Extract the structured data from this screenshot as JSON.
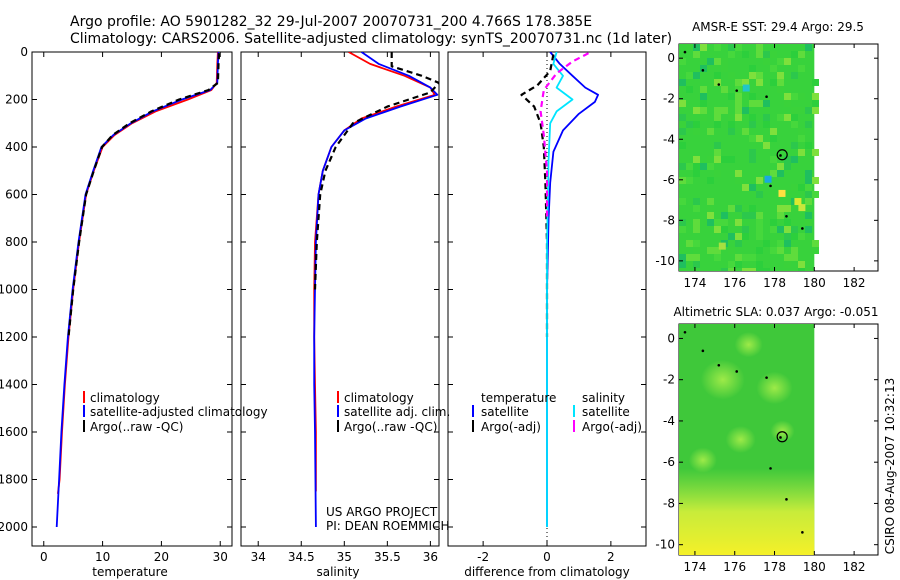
{
  "header": {
    "title_line1": "Argo profile: AO 5901282_32 29-Jul-2007 20070731_200 4.766S 178.385E",
    "title_line2": "Climatology: CARS2006. Satellite-adjusted climatology: synTS_20070731.nc (1d later)"
  },
  "footer": {
    "project_line1": "US ARGO PROJECT",
    "project_line2": "PI: DEAN ROEMMICH",
    "stamp": "CSIRO 08-Aug-2007 10:32:13"
  },
  "colors": {
    "climatology": "#ff0000",
    "satellite": "#0000ff",
    "argo": "#000000",
    "sal_satellite": "#00e5ff",
    "sal_argo": "#ff00ff"
  },
  "chart_data": [
    {
      "id": "temperature",
      "type": "line",
      "xlabel": "temperature",
      "ylabel": "",
      "xlim": [
        -2,
        32
      ],
      "ylim": [
        2080,
        0
      ],
      "xticks": [
        0,
        10,
        20,
        30
      ],
      "xtick_labels": [
        "0",
        "10",
        "20",
        "30"
      ],
      "yticks": [
        0,
        200,
        400,
        600,
        800,
        1000,
        1200,
        1400,
        1600,
        1800,
        2000
      ],
      "ytick_labels": [
        "0",
        "200",
        "400",
        "600",
        "800",
        "1000",
        "1200",
        "1400",
        "1600",
        "1800",
        "2000"
      ],
      "legend": [
        "climatology",
        "satellite-adjusted climatology",
        "Argo(..raw -QC)"
      ],
      "legend_placement": "lower-right",
      "series": [
        {
          "name": "climatology",
          "style": "solid",
          "color": "#ff0000",
          "x": [
            29.6,
            29.5,
            29.4,
            28.5,
            24.5,
            19.0,
            15.0,
            12.0,
            10.0,
            8.5,
            7.2,
            6.0,
            5.0,
            4.2,
            3.6,
            3.1,
            2.7,
            2.4
          ],
          "y": [
            0,
            50,
            130,
            160,
            200,
            250,
            300,
            350,
            400,
            500,
            600,
            800,
            1000,
            1200,
            1400,
            1600,
            1800,
            1860
          ]
        },
        {
          "name": "satellite-adjusted climatology",
          "style": "solid",
          "color": "#0000ff",
          "x": [
            29.7,
            29.6,
            29.5,
            28.3,
            23.5,
            18.5,
            14.8,
            11.8,
            9.8,
            8.4,
            7.1,
            5.9,
            4.9,
            4.1,
            3.5,
            3.0,
            2.6,
            2.3,
            2.2
          ],
          "y": [
            0,
            50,
            130,
            160,
            200,
            250,
            300,
            350,
            400,
            500,
            600,
            800,
            1000,
            1200,
            1400,
            1600,
            1800,
            1950,
            2000
          ]
        },
        {
          "name": "Argo(..raw -QC)",
          "style": "dashed",
          "color": "#000000",
          "x": [
            29.8,
            29.7,
            29.6,
            28.0,
            23.0,
            18.3,
            14.6,
            11.7,
            9.9,
            8.5,
            7.2,
            6.0,
            5.0,
            4.2
          ],
          "y": [
            5,
            50,
            130,
            160,
            200,
            250,
            300,
            350,
            400,
            500,
            600,
            800,
            1000,
            1200
          ]
        }
      ]
    },
    {
      "id": "salinity",
      "type": "line",
      "xlabel": "salinity",
      "ylabel": "",
      "xlim": [
        33.8,
        36.1
      ],
      "ylim": [
        2080,
        0
      ],
      "xticks": [
        34,
        34.5,
        35,
        35.5,
        36
      ],
      "xtick_labels": [
        "34",
        "34.5",
        "35",
        "35.5",
        "36"
      ],
      "legend": [
        "climatology",
        "satellite adj. clim.",
        "Argo(..raw -QC)"
      ],
      "legend_placement": "lower-right",
      "series": [
        {
          "name": "climatology",
          "style": "solid",
          "color": "#ff0000",
          "x": [
            35.05,
            35.3,
            35.7,
            36.0,
            36.05,
            35.6,
            35.2,
            35.0,
            34.85,
            34.75,
            34.7,
            34.66,
            34.65,
            34.65,
            34.66,
            34.67,
            34.67
          ],
          "y": [
            0,
            50,
            100,
            150,
            180,
            230,
            280,
            330,
            400,
            500,
            600,
            800,
            1000,
            1200,
            1400,
            1600,
            1850
          ]
        },
        {
          "name": "satellite adj. clim.",
          "style": "solid",
          "color": "#0000ff",
          "x": [
            35.2,
            35.4,
            35.75,
            36.0,
            36.08,
            35.65,
            35.25,
            35.0,
            34.85,
            34.75,
            34.7,
            34.67,
            34.66,
            34.65,
            34.65,
            34.66,
            34.67
          ],
          "y": [
            0,
            50,
            100,
            150,
            180,
            230,
            280,
            330,
            400,
            500,
            600,
            800,
            1000,
            1200,
            1400,
            1600,
            2000
          ]
        },
        {
          "name": "Argo(..raw -QC)",
          "style": "dashed",
          "color": "#000000",
          "x": [
            35.55,
            35.55,
            35.9,
            36.1,
            36.0,
            35.5,
            35.1,
            34.9,
            34.78,
            34.72,
            34.68,
            34.66
          ],
          "y": [
            0,
            60,
            100,
            130,
            170,
            230,
            300,
            400,
            500,
            600,
            800,
            1000
          ]
        }
      ]
    },
    {
      "id": "difference",
      "type": "line",
      "xlabel": "difference from climatology",
      "ylabel": "",
      "xlim": [
        -3.1,
        3.1
      ],
      "ylim": [
        2080,
        0
      ],
      "xticks": [
        -2,
        0,
        2
      ],
      "xtick_labels": [
        "-2",
        "0",
        "2"
      ],
      "legend_groups": [
        {
          "heading": "temperature",
          "items": [
            "satellite",
            "Argo(-adj)"
          ]
        },
        {
          "heading": "salinity",
          "items": [
            "satellite",
            "Argo(-adj)"
          ]
        }
      ],
      "legend_placement": "lower-center",
      "series": [
        {
          "name": "temperature satellite",
          "style": "solid",
          "color": "#0000ff",
          "x": [
            0.1,
            0.4,
            0.8,
            1.2,
            1.6,
            1.5,
            1.0,
            0.5,
            0.2,
            0.1,
            0.05,
            0.0,
            0.0
          ],
          "y": [
            0,
            50,
            100,
            150,
            180,
            210,
            260,
            330,
            420,
            550,
            700,
            1000,
            2000
          ]
        },
        {
          "name": "temperature Argo(-adj)",
          "style": "dashed",
          "color": "#000000",
          "x": [
            0.2,
            0.1,
            -0.3,
            -0.8,
            -0.4,
            -0.2,
            -0.1,
            -0.05,
            0.0,
            0.0
          ],
          "y": [
            10,
            80,
            140,
            180,
            230,
            300,
            400,
            550,
            800,
            1200
          ]
        },
        {
          "name": "salinity satellite",
          "style": "solid",
          "color": "#00e5ff",
          "x": [
            0.3,
            0.2,
            0.5,
            0.3,
            0.8,
            0.3,
            0.1,
            0.05,
            0.0,
            0.0
          ],
          "y": [
            0,
            50,
            100,
            150,
            200,
            250,
            300,
            450,
            800,
            2000
          ]
        },
        {
          "name": "salinity Argo(-adj)",
          "style": "dashed",
          "color": "#ff00ff",
          "x": [
            1.3,
            0.8,
            0.3,
            -0.1,
            -0.2,
            -0.1,
            0.0,
            0.0
          ],
          "y": [
            5,
            40,
            90,
            160,
            250,
            350,
            500,
            700
          ]
        }
      ]
    },
    {
      "id": "sst-map",
      "type": "heatmap",
      "title": "AMSR-E SST: 29.4 Argo: 29.5",
      "xlim": [
        173.2,
        183.2
      ],
      "ylim": [
        -10.5,
        0.7
      ],
      "xticks": [
        174,
        176,
        178,
        180,
        182
      ],
      "xtick_labels": [
        "174",
        "176",
        "178",
        "180",
        "182"
      ],
      "yticks": [
        0,
        -2,
        -4,
        -6,
        -8,
        -10
      ],
      "ytick_labels": [
        "0",
        "-2",
        "-4",
        "-6",
        "-8",
        "-10"
      ],
      "data_lon_range": [
        173.2,
        180
      ],
      "field_color": "#38d23c",
      "argo_position": [
        178.385,
        -4.766
      ],
      "track": [
        [
          173.5,
          0.3
        ],
        [
          174.4,
          -0.6
        ],
        [
          175.2,
          -1.3
        ],
        [
          176.1,
          -1.6
        ],
        [
          177.6,
          -1.9
        ],
        [
          178.3,
          -4.8
        ],
        [
          177.8,
          -6.3
        ],
        [
          178.6,
          -7.8
        ],
        [
          179.4,
          -8.4
        ]
      ]
    },
    {
      "id": "sla-map",
      "type": "heatmap",
      "title": "Altimetric SLA: 0.037 Argo: -0.051",
      "xlim": [
        173.2,
        183.2
      ],
      "ylim": [
        -10.5,
        0.7
      ],
      "xticks": [
        174,
        176,
        178,
        180,
        182
      ],
      "xtick_labels": [
        "174",
        "176",
        "178",
        "180",
        "182"
      ],
      "yticks": [
        0,
        -2,
        -4,
        -6,
        -8,
        -10
      ],
      "ytick_labels": [
        "0",
        "-2",
        "-4",
        "-6",
        "-8",
        "-10"
      ],
      "data_lon_range": [
        173.2,
        180
      ],
      "field_color": "#3fc83a",
      "argo_position": [
        178.385,
        -4.766
      ],
      "track": [
        [
          173.5,
          0.3
        ],
        [
          174.4,
          -0.6
        ],
        [
          175.2,
          -1.3
        ],
        [
          176.1,
          -1.6
        ],
        [
          177.6,
          -1.9
        ],
        [
          178.3,
          -4.8
        ],
        [
          177.8,
          -6.3
        ],
        [
          178.6,
          -7.8
        ],
        [
          179.4,
          -9.4
        ]
      ]
    }
  ]
}
